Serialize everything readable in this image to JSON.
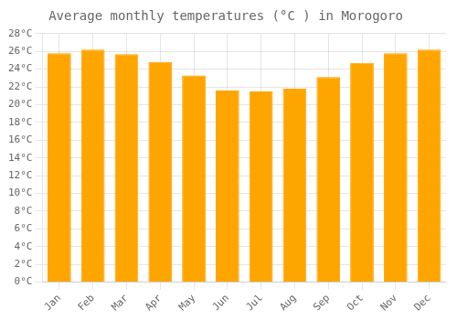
{
  "chart_data": {
    "type": "bar",
    "title": "Average monthly temperatures (°C ) in Morogoro",
    "categories": [
      "Jan",
      "Feb",
      "Mar",
      "Apr",
      "May",
      "Jun",
      "Jul",
      "Aug",
      "Sep",
      "Oct",
      "Nov",
      "Dec"
    ],
    "values": [
      25.8,
      26.2,
      25.7,
      24.8,
      23.3,
      21.6,
      21.5,
      21.8,
      23.1,
      24.7,
      25.8,
      26.2
    ],
    "color": "#FFA500",
    "ylim": [
      0,
      28
    ],
    "yticks": [
      {
        "value": 0,
        "label": "0°C"
      },
      {
        "value": 2,
        "label": "2°C"
      },
      {
        "value": 4,
        "label": "4°C"
      },
      {
        "value": 6,
        "label": "6°C"
      },
      {
        "value": 8,
        "label": "8°C"
      },
      {
        "value": 10,
        "label": "10°C"
      },
      {
        "value": 12,
        "label": "12°C"
      },
      {
        "value": 14,
        "label": "14°C"
      },
      {
        "value": 16,
        "label": "16°C"
      },
      {
        "value": 18,
        "label": "18°C"
      },
      {
        "value": 20,
        "label": "20°C"
      },
      {
        "value": 22,
        "label": "22°C"
      },
      {
        "value": 24,
        "label": "24°C"
      },
      {
        "value": 26,
        "label": "26°C"
      },
      {
        "value": 28,
        "label": "28°C"
      }
    ],
    "grid": true
  }
}
